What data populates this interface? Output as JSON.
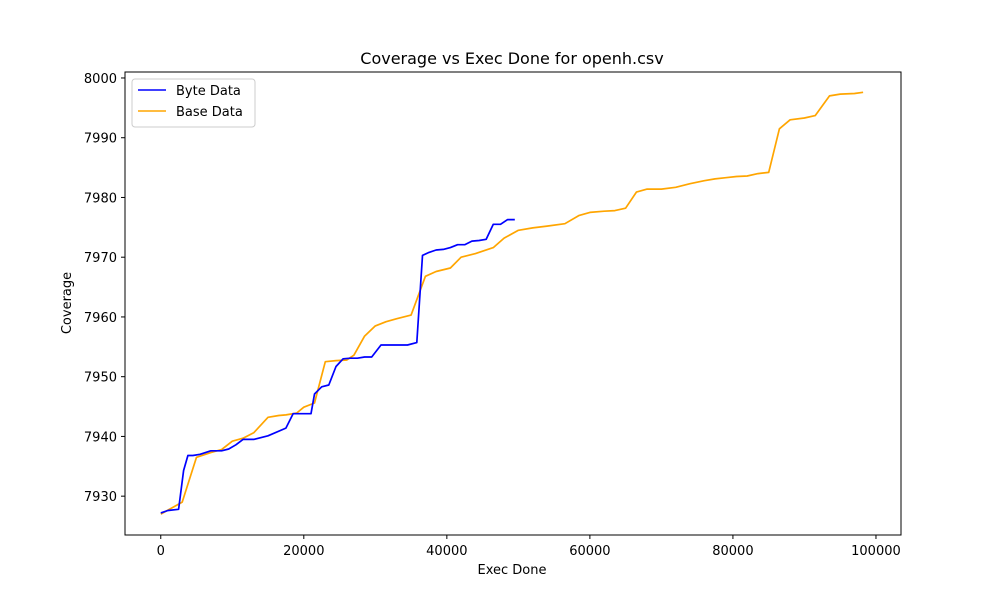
{
  "chart_data": {
    "type": "line",
    "title": "Coverage vs Exec Done for openh.csv",
    "xlabel": "Exec Done",
    "ylabel": "Coverage",
    "xlim": [
      -5000,
      103500
    ],
    "ylim": [
      7923.5,
      8001
    ],
    "xticks": [
      0,
      20000,
      40000,
      60000,
      80000,
      100000
    ],
    "xtick_labels": [
      "0",
      "20000",
      "40000",
      "60000",
      "80000",
      "100000"
    ],
    "yticks": [
      7930,
      7940,
      7950,
      7960,
      7970,
      7980,
      7990,
      8000
    ],
    "ytick_labels": [
      "7930",
      "7940",
      "7950",
      "7960",
      "7970",
      "7980",
      "7990",
      "8000"
    ],
    "grid": false,
    "legend_position": "top-left",
    "series": [
      {
        "name": "Byte Data",
        "color": "#0000ff",
        "x": [
          0,
          1000,
          2500,
          3200,
          3800,
          4500,
          5500,
          7000,
          8500,
          9500,
          10500,
          11500,
          13000,
          15000,
          17500,
          18500,
          19500,
          21000,
          21500,
          22500,
          23500,
          24500,
          25500,
          26500,
          27500,
          28500,
          29500,
          30800,
          31500,
          33000,
          34500,
          35800,
          36600,
          37500,
          38500,
          39500,
          40500,
          41500,
          42500,
          43500,
          44500,
          45500,
          46500,
          47500,
          48500,
          49500
        ],
        "y": [
          7927.2,
          7927.6,
          7927.8,
          7934.3,
          7936.8,
          7936.8,
          7937.0,
          7937.6,
          7937.6,
          7937.9,
          7938.6,
          7939.5,
          7939.5,
          7940.1,
          7941.4,
          7943.8,
          7943.8,
          7943.8,
          7947.1,
          7948.3,
          7948.6,
          7951.7,
          7953.0,
          7953.1,
          7953.1,
          7953.3,
          7953.3,
          7955.3,
          7955.3,
          7955.3,
          7955.3,
          7955.7,
          7970.3,
          7970.8,
          7971.2,
          7971.3,
          7971.6,
          7972.1,
          7972.1,
          7972.7,
          7972.8,
          7973.0,
          7975.5,
          7975.5,
          7976.3,
          7976.3
        ]
      },
      {
        "name": "Base Data",
        "color": "#ffa500",
        "x": [
          0,
          1500,
          3000,
          5000,
          7000,
          8500,
          10000,
          11500,
          13000,
          15000,
          16500,
          17500,
          19000,
          20000,
          21500,
          23000,
          24500,
          26000,
          27000,
          28500,
          30000,
          31500,
          33000,
          35000,
          37000,
          38500,
          40500,
          42000,
          44000,
          46500,
          48000,
          50000,
          52000,
          54000,
          56500,
          58500,
          60000,
          62000,
          63500,
          65000,
          66500,
          68000,
          70000,
          72000,
          74000,
          76000,
          77500,
          79000,
          80500,
          82000,
          83500,
          85000,
          86500,
          88000,
          90000,
          91500,
          93500,
          95000,
          97000,
          98200
        ],
        "y": [
          7927.0,
          7928.0,
          7929.0,
          7936.5,
          7937.3,
          7937.8,
          7939.2,
          7939.7,
          7940.6,
          7943.2,
          7943.5,
          7943.6,
          7943.9,
          7944.9,
          7945.6,
          7952.5,
          7952.7,
          7952.8,
          7953.6,
          7956.8,
          7958.5,
          7959.2,
          7959.7,
          7960.3,
          7966.8,
          7967.6,
          7968.2,
          7970.0,
          7970.6,
          7971.6,
          7973.2,
          7974.5,
          7974.9,
          7975.2,
          7975.6,
          7977.0,
          7977.5,
          7977.7,
          7977.8,
          7978.2,
          7980.9,
          7981.4,
          7981.4,
          7981.7,
          7982.3,
          7982.8,
          7983.1,
          7983.3,
          7983.5,
          7983.6,
          7984.0,
          7984.2,
          7991.5,
          7993.0,
          7993.3,
          7993.7,
          7997.0,
          7997.3,
          7997.4,
          7997.6
        ]
      }
    ]
  }
}
